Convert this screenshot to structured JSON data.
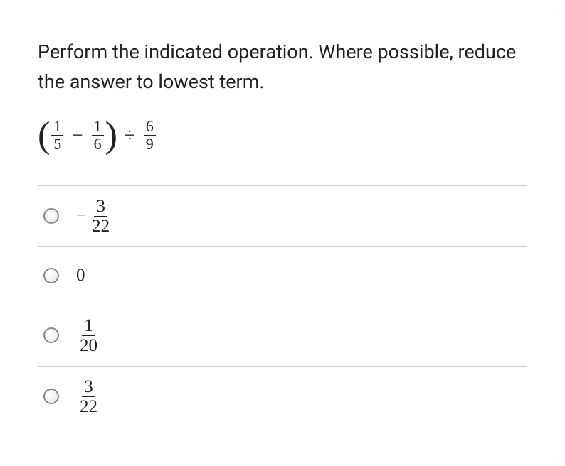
{
  "question": {
    "text": "Perform the indicated operation. Where possible, reduce the answer to lowest term."
  },
  "expression": {
    "paren_open": "(",
    "frac1_num": "1",
    "frac1_den": "5",
    "minus": "−",
    "frac2_num": "1",
    "frac2_den": "6",
    "paren_close": ")",
    "divide": "÷",
    "frac3_num": "6",
    "frac3_den": "9"
  },
  "options": [
    {
      "type": "neg_fraction",
      "neg": "−",
      "num": "3",
      "den": "22"
    },
    {
      "type": "plain",
      "value": "0"
    },
    {
      "type": "fraction",
      "num": "1",
      "den": "20"
    },
    {
      "type": "fraction",
      "num": "3",
      "den": "22"
    }
  ],
  "colors": {
    "border": "#d0d0d0",
    "divider": "#cccccc",
    "text": "#222222",
    "radio_border": "#888888",
    "background": "#ffffff"
  }
}
